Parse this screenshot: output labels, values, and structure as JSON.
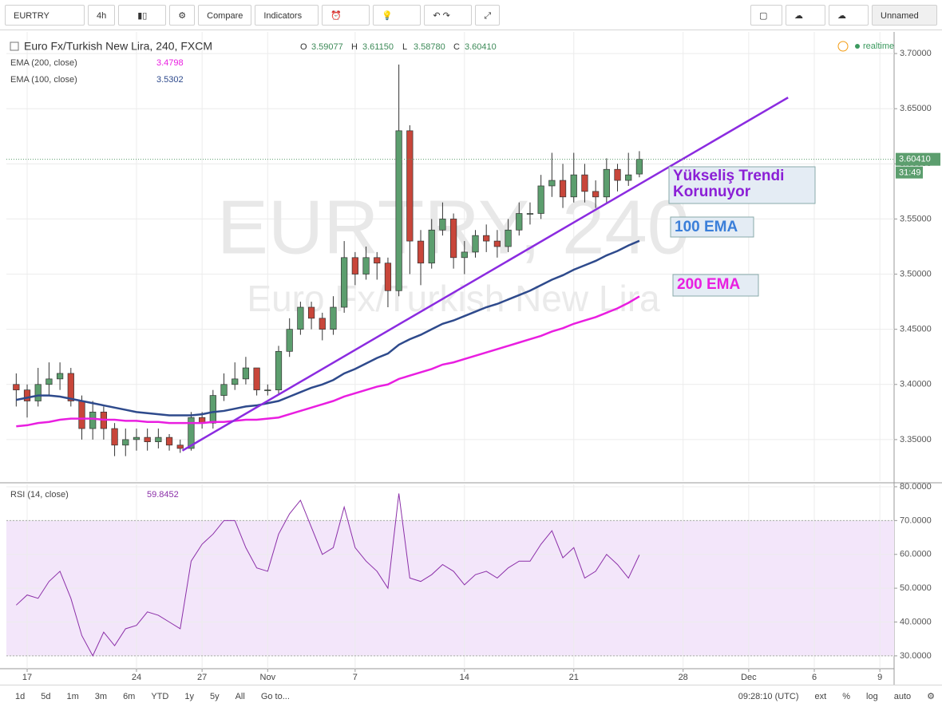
{
  "toolbar": {
    "symbol": "EURTRY",
    "interval": "4h",
    "compare": "Compare",
    "indicators": "Indicators",
    "layout": "Unnamed"
  },
  "footer": {
    "ranges": [
      "1d",
      "5d",
      "1m",
      "3m",
      "6m",
      "YTD",
      "1y",
      "5y",
      "All"
    ],
    "goto": "Go to...",
    "time": "09:28:10 (UTC)",
    "options": [
      "ext",
      "%",
      "log",
      "auto"
    ]
  },
  "chart_data": [
    {
      "type": "candlestick",
      "title": "Euro Fx/Turkish New Lira, 240, FXCM",
      "ohlc_labels": [
        "O",
        "H",
        "L",
        "C"
      ],
      "ohlc_values": [
        "3.59077",
        "3.61150",
        "3.58780",
        "3.60410"
      ],
      "last_price_label": "3.60410",
      "countdown": "31:49",
      "status": "realtime",
      "watermark": "EURTRY, 240",
      "watermark_subtitle": "Euro Fx/Turkish New Lira",
      "up_color": "#5c9e6e",
      "down_color": "#c8463a",
      "grid": true,
      "xlim": [
        -1.9,
        79.3
      ],
      "ylim": [
        3.3123,
        3.7196
      ],
      "yticks": [
        {
          "value": 3.35,
          "label": "3.35000"
        },
        {
          "value": 3.4,
          "label": "3.40000"
        },
        {
          "value": 3.45,
          "label": "3.45000"
        },
        {
          "value": 3.5,
          "label": "3.50000"
        },
        {
          "value": 3.55,
          "label": "3.55000"
        },
        {
          "value": 3.6,
          "label": "3.60000"
        },
        {
          "value": 3.65,
          "label": "3.65000"
        },
        {
          "value": 3.7,
          "label": "3.70000"
        }
      ],
      "x": [
        -1,
        0,
        1,
        2,
        3,
        4,
        5,
        6,
        7,
        8,
        9,
        10,
        11,
        12,
        13,
        14,
        15,
        16,
        17,
        18,
        19,
        20,
        21,
        22,
        23,
        24,
        25,
        26,
        27,
        28,
        29,
        30,
        31,
        32,
        33,
        34,
        35,
        36,
        37,
        38,
        39,
        40,
        41,
        42,
        43,
        44,
        45,
        46,
        47,
        48,
        49,
        50,
        51,
        52,
        53,
        54,
        55,
        56
      ],
      "open": [
        3.4,
        3.395,
        3.385,
        3.4,
        3.405,
        3.41,
        3.385,
        3.36,
        3.375,
        3.36,
        3.345,
        3.35,
        3.352,
        3.348,
        3.352,
        3.345,
        3.342,
        3.37,
        3.365,
        3.39,
        3.4,
        3.405,
        3.415,
        3.395,
        3.395,
        3.43,
        3.45,
        3.47,
        3.46,
        3.45,
        3.47,
        3.515,
        3.5,
        3.515,
        3.51,
        3.485,
        3.63,
        3.53,
        3.51,
        3.54,
        3.55,
        3.515,
        3.52,
        3.535,
        3.53,
        3.525,
        3.54,
        3.555,
        3.555,
        3.58,
        3.585,
        3.57,
        3.59,
        3.575,
        3.57,
        3.595,
        3.585,
        3.59077
      ],
      "high": [
        3.41,
        3.4,
        3.415,
        3.42,
        3.42,
        3.415,
        3.39,
        3.385,
        3.38,
        3.365,
        3.36,
        3.36,
        3.36,
        3.36,
        3.355,
        3.35,
        3.375,
        3.375,
        3.395,
        3.41,
        3.42,
        3.425,
        3.415,
        3.4,
        3.435,
        3.46,
        3.475,
        3.475,
        3.465,
        3.48,
        3.53,
        3.52,
        3.525,
        3.52,
        3.515,
        3.69,
        3.635,
        3.54,
        3.55,
        3.565,
        3.555,
        3.53,
        3.54,
        3.545,
        3.54,
        3.55,
        3.565,
        3.565,
        3.59,
        3.61,
        3.6,
        3.61,
        3.6,
        3.585,
        3.605,
        3.6,
        3.61,
        3.6115
      ],
      "low": [
        3.38,
        3.37,
        3.38,
        3.39,
        3.395,
        3.38,
        3.35,
        3.35,
        3.35,
        3.335,
        3.335,
        3.34,
        3.34,
        3.342,
        3.34,
        3.338,
        3.34,
        3.36,
        3.36,
        3.385,
        3.395,
        3.4,
        3.39,
        3.39,
        3.39,
        3.425,
        3.445,
        3.45,
        3.44,
        3.445,
        3.465,
        3.49,
        3.495,
        3.495,
        3.47,
        3.48,
        3.5,
        3.49,
        3.505,
        3.535,
        3.505,
        3.5,
        3.515,
        3.52,
        3.515,
        3.52,
        3.535,
        3.545,
        3.55,
        3.57,
        3.56,
        3.565,
        3.565,
        3.56,
        3.565,
        3.575,
        3.58,
        3.5878
      ],
      "close": [
        3.395,
        3.385,
        3.4,
        3.405,
        3.41,
        3.385,
        3.36,
        3.375,
        3.36,
        3.345,
        3.35,
        3.352,
        3.348,
        3.352,
        3.345,
        3.342,
        3.37,
        3.365,
        3.39,
        3.4,
        3.405,
        3.415,
        3.395,
        3.395,
        3.43,
        3.45,
        3.47,
        3.46,
        3.45,
        3.47,
        3.515,
        3.5,
        3.515,
        3.51,
        3.485,
        3.63,
        3.53,
        3.51,
        3.54,
        3.55,
        3.515,
        3.52,
        3.535,
        3.53,
        3.525,
        3.54,
        3.555,
        3.555,
        3.58,
        3.585,
        3.57,
        3.59,
        3.575,
        3.57,
        3.595,
        3.585,
        3.59,
        3.6041
      ],
      "series": [
        {
          "name": "EMA (200, close)",
          "color": "#e91ee0",
          "values": [
            3.362,
            3.363,
            3.365,
            3.366,
            3.368,
            3.369,
            3.369,
            3.369,
            3.368,
            3.368,
            3.367,
            3.367,
            3.366,
            3.366,
            3.365,
            3.365,
            3.365,
            3.365,
            3.366,
            3.366,
            3.367,
            3.368,
            3.368,
            3.369,
            3.37,
            3.373,
            3.376,
            3.379,
            3.382,
            3.385,
            3.389,
            3.392,
            3.395,
            3.398,
            3.4,
            3.405,
            3.408,
            3.411,
            3.414,
            3.418,
            3.42,
            3.423,
            3.426,
            3.429,
            3.432,
            3.435,
            3.438,
            3.441,
            3.444,
            3.448,
            3.451,
            3.455,
            3.458,
            3.461,
            3.465,
            3.469,
            3.474,
            3.4798
          ]
        },
        {
          "name": "EMA (100, close)",
          "color": "#2e4a8c",
          "values": [
            3.386,
            3.388,
            3.39,
            3.39,
            3.389,
            3.387,
            3.385,
            3.383,
            3.381,
            3.379,
            3.377,
            3.375,
            3.374,
            3.373,
            3.372,
            3.372,
            3.372,
            3.373,
            3.375,
            3.376,
            3.378,
            3.38,
            3.381,
            3.383,
            3.385,
            3.389,
            3.393,
            3.397,
            3.4,
            3.404,
            3.41,
            3.414,
            3.419,
            3.424,
            3.428,
            3.436,
            3.441,
            3.445,
            3.45,
            3.455,
            3.458,
            3.462,
            3.466,
            3.47,
            3.473,
            3.477,
            3.481,
            3.485,
            3.49,
            3.495,
            3.499,
            3.504,
            3.508,
            3.512,
            3.517,
            3.521,
            3.526,
            3.5302
          ]
        }
      ],
      "trendline": {
        "x": [
          14.2,
          69.6
        ],
        "y": [
          3.34,
          3.6601
        ],
        "color": "#8b2be0"
      },
      "annotations": [
        {
          "lines": [
            "Yükseliş Trendi",
            "Korunuyor"
          ],
          "color": "#8b1fd6"
        },
        {
          "lines": [
            "100 EMA"
          ],
          "color": "#3b7fd9"
        },
        {
          "lines": [
            "200 EMA"
          ],
          "color": "#e91ee0"
        }
      ]
    },
    {
      "type": "line",
      "title": "RSI (14, close)",
      "color": "#8b2fa8",
      "grid": true,
      "xlim": [
        -1.9,
        79.3
      ],
      "ylim": [
        26.2,
        80.7
      ],
      "band": [
        30,
        70
      ],
      "yticks": [
        {
          "value": 30,
          "label": "30.0000"
        },
        {
          "value": 40,
          "label": "40.0000"
        },
        {
          "value": 50,
          "label": "50.0000"
        },
        {
          "value": 60,
          "label": "60.0000"
        },
        {
          "value": 70,
          "label": "70.0000"
        },
        {
          "value": 80,
          "label": "80.0000"
        }
      ],
      "xticks": [
        {
          "value": 0,
          "label": "17"
        },
        {
          "value": 10,
          "label": "24"
        },
        {
          "value": 16,
          "label": "27"
        },
        {
          "value": 22,
          "label": "Nov"
        },
        {
          "value": 30,
          "label": "7"
        },
        {
          "value": 40,
          "label": "14"
        },
        {
          "value": 50,
          "label": "21"
        },
        {
          "value": 60,
          "label": "28"
        },
        {
          "value": 66,
          "label": "Dec"
        },
        {
          "value": 72,
          "label": "6"
        },
        {
          "value": 78,
          "label": "9"
        }
      ],
      "x": [
        -1,
        0,
        1,
        2,
        3,
        4,
        5,
        6,
        7,
        8,
        9,
        10,
        11,
        12,
        13,
        14,
        15,
        16,
        17,
        18,
        19,
        20,
        21,
        22,
        23,
        24,
        25,
        26,
        27,
        28,
        29,
        30,
        31,
        32,
        33,
        34,
        35,
        36,
        37,
        38,
        39,
        40,
        41,
        42,
        43,
        44,
        45,
        46,
        47,
        48,
        49,
        50,
        51,
        52,
        53,
        54,
        55,
        56
      ],
      "values": [
        45,
        48,
        47,
        52,
        55,
        47,
        36,
        30,
        37,
        33,
        38,
        39,
        43,
        42,
        40,
        38,
        58,
        63,
        66,
        70,
        70,
        62,
        56,
        55,
        66,
        72,
        76,
        68,
        60,
        62,
        74,
        62,
        58,
        55,
        50,
        78,
        53,
        52,
        54,
        57,
        55,
        51,
        54,
        55,
        53,
        56,
        58,
        58,
        63,
        67,
        59,
        62,
        53,
        55,
        60,
        57,
        53,
        59.8452
      ]
    }
  ]
}
